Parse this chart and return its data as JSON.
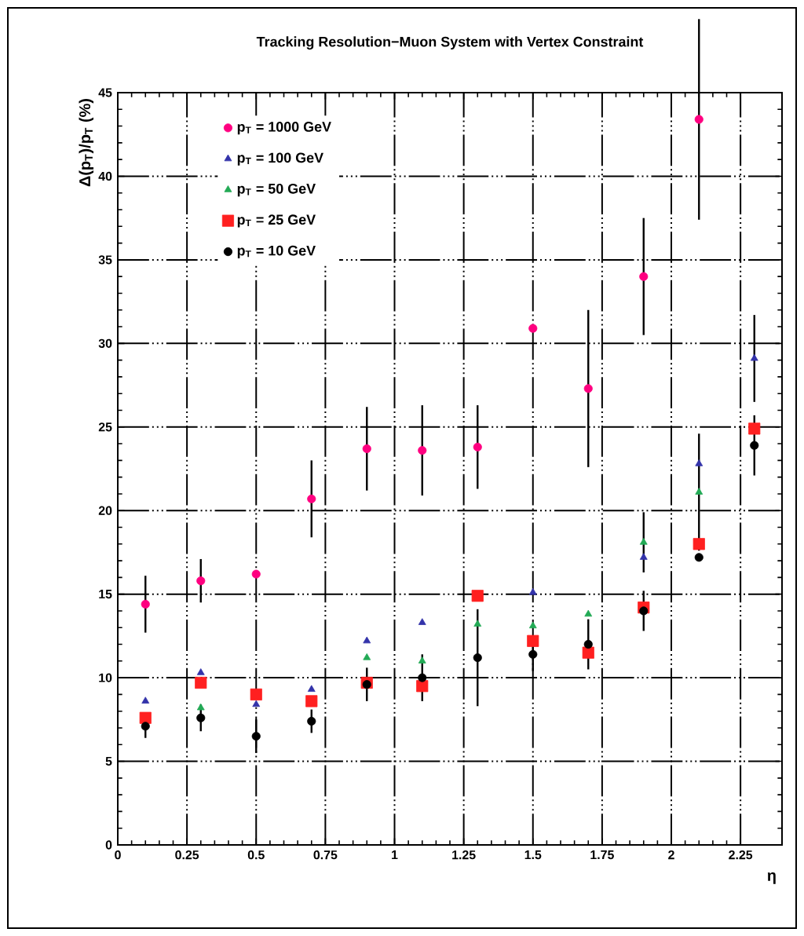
{
  "chart_data": {
    "type": "scatter",
    "title": "Tracking Resolution−Muon System with Vertex Constraint",
    "xlabel": "η",
    "ylabel": "Δ(p$_{T}$)/p$_{T}$ (%)",
    "x": [
      0.1,
      0.3,
      0.5,
      0.7,
      0.9,
      1.1,
      1.3,
      1.5,
      1.7,
      1.9,
      2.1,
      2.3
    ],
    "series": [
      {
        "name": "p$_{T}$ = 1000 GeV",
        "color": "#ff0080",
        "marker": "circle",
        "values": [
          14.4,
          15.8,
          16.2,
          20.7,
          23.7,
          23.6,
          23.8,
          30.9,
          27.3,
          34.0,
          43.4,
          null
        ],
        "errors": [
          1.7,
          1.3,
          null,
          2.3,
          2.5,
          2.7,
          2.5,
          null,
          4.7,
          3.5,
          6.0,
          null
        ]
      },
      {
        "name": "p$_{T}$ = 100 GeV",
        "color": "#3333aa",
        "marker": "triangle",
        "values": [
          8.6,
          10.3,
          8.4,
          9.3,
          12.2,
          13.3,
          null,
          15.1,
          null,
          17.2,
          22.8,
          29.1
        ],
        "errors": [
          null,
          null,
          null,
          null,
          null,
          null,
          null,
          null,
          null,
          null,
          null,
          2.6
        ]
      },
      {
        "name": "p$_{T}$ = 50 GeV",
        "color": "#22aa55",
        "marker": "triangle",
        "values": [
          null,
          8.2,
          null,
          null,
          11.2,
          11.0,
          13.2,
          13.1,
          13.8,
          18.1,
          21.1,
          null
        ],
        "errors": [
          null,
          null,
          null,
          null,
          null,
          null,
          null,
          null,
          null,
          1.8,
          3.5,
          null
        ]
      },
      {
        "name": "p$_{T}$ = 25 GeV",
        "color": "#ff2020",
        "marker": "square",
        "values": [
          7.6,
          9.7,
          9.0,
          8.6,
          9.7,
          9.5,
          14.9,
          12.2,
          11.5,
          14.2,
          18.0,
          24.9
        ]
      },
      {
        "name": "p$_{T}$ = 10 GeV",
        "color": "#000000",
        "marker": "circle",
        "values": [
          7.1,
          7.6,
          6.5,
          7.4,
          9.6,
          10.0,
          11.2,
          11.4,
          12.0,
          14.0,
          17.2,
          23.9
        ],
        "errors": [
          0.7,
          0.8,
          1.0,
          0.7,
          1.0,
          1.4,
          2.9,
          1.0,
          1.5,
          1.2,
          null,
          1.8
        ]
      }
    ],
    "xlim": [
      0,
      2.4
    ],
    "ylim": [
      0,
      45
    ],
    "xticks": [
      0,
      0.25,
      0.5,
      0.75,
      1,
      1.25,
      1.5,
      1.75,
      2,
      2.25
    ],
    "yticks": [
      0,
      5,
      10,
      15,
      20,
      25,
      30,
      35,
      40,
      45
    ],
    "grid": true,
    "legend": "top left"
  }
}
